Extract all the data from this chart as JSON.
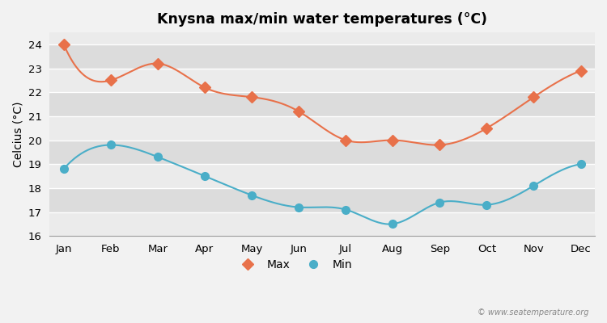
{
  "title": "Knysna max/min water temperatures (°C)",
  "ylabel": "Celcius (°C)",
  "months": [
    "Jan",
    "Feb",
    "Mar",
    "Apr",
    "May",
    "Jun",
    "Jul",
    "Aug",
    "Sep",
    "Oct",
    "Nov",
    "Dec"
  ],
  "max_temps": [
    24.0,
    22.5,
    23.2,
    22.2,
    21.8,
    21.2,
    20.0,
    20.0,
    19.8,
    20.5,
    21.8,
    22.9
  ],
  "min_temps": [
    18.8,
    19.8,
    19.3,
    18.5,
    17.7,
    17.2,
    17.1,
    16.5,
    17.4,
    17.3,
    18.1,
    19.0
  ],
  "max_color": "#e8714a",
  "min_color": "#4aaec8",
  "bg_color": "#f2f2f2",
  "band_light": "#ebebeb",
  "band_dark": "#dcdcdc",
  "ylim": [
    16,
    24.5
  ],
  "yticks": [
    16,
    17,
    18,
    19,
    20,
    21,
    22,
    23,
    24
  ],
  "watermark": "© www.seatemperature.org",
  "legend_labels": [
    "Max",
    "Min"
  ]
}
